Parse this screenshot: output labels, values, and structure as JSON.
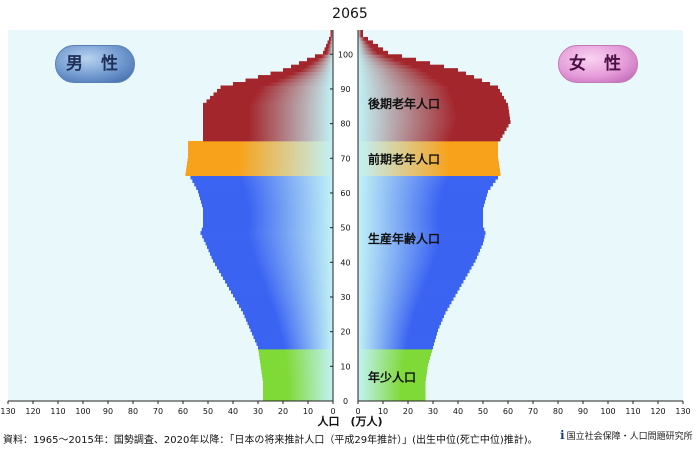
{
  "chart_data": {
    "type": "population-pyramid",
    "title": "2065",
    "xlabel": "人口　(万人)",
    "x_ticks": [
      130,
      120,
      110,
      100,
      90,
      80,
      70,
      60,
      50,
      40,
      30,
      20,
      10,
      0
    ],
    "y_ticks": [
      0,
      10,
      20,
      30,
      40,
      50,
      60,
      70,
      80,
      90,
      100
    ],
    "xlim": [
      0,
      130
    ],
    "ylim": [
      0,
      107
    ],
    "legend": {
      "male": "男 性",
      "female": "女 性"
    },
    "series": [
      {
        "name": "男 性",
        "ages": [
          0,
          5,
          10,
          15,
          20,
          25,
          30,
          35,
          40,
          45,
          48,
          50,
          55,
          60,
          64,
          65,
          70,
          74,
          75,
          80,
          85,
          90,
          95,
          100,
          105
        ],
        "values": [
          28,
          28,
          29,
          30,
          33,
          36,
          40,
          44,
          48,
          51,
          53,
          52,
          52,
          54,
          57,
          59,
          58,
          58,
          52,
          52,
          52,
          45,
          20,
          4,
          1
        ]
      },
      {
        "name": "女 性",
        "ages": [
          0,
          5,
          10,
          15,
          20,
          25,
          30,
          35,
          40,
          45,
          48,
          50,
          55,
          60,
          64,
          65,
          70,
          74,
          75,
          80,
          85,
          90,
          95,
          100,
          105
        ],
        "values": [
          27,
          27,
          28,
          30,
          32,
          35,
          39,
          43,
          47,
          50,
          51,
          50,
          50,
          52,
          56,
          57,
          56,
          56,
          57,
          61,
          60,
          56,
          40,
          12,
          2
        ]
      }
    ],
    "groups": [
      {
        "label": "年少人口",
        "from": 0,
        "to": 14,
        "color": "#7fd936"
      },
      {
        "label": "生産年齢人口",
        "from": 15,
        "to": 64,
        "color": "#3a63f2"
      },
      {
        "label": "前期老年人口",
        "from": 65,
        "to": 74,
        "color": "#f7a21a"
      },
      {
        "label": "後期老年人口",
        "from": 75,
        "to": 106,
        "color": "#a3262c"
      }
    ],
    "grid": false
  },
  "footer": {
    "source": "資料：1965～2015年：国勢調査、2020年以降：「日本の将来推計人口（平成29年推計）」(出生中位(死亡中位)推計)。",
    "institute": "国立社会保障・人口問題研究所",
    "logo": "ipss"
  }
}
